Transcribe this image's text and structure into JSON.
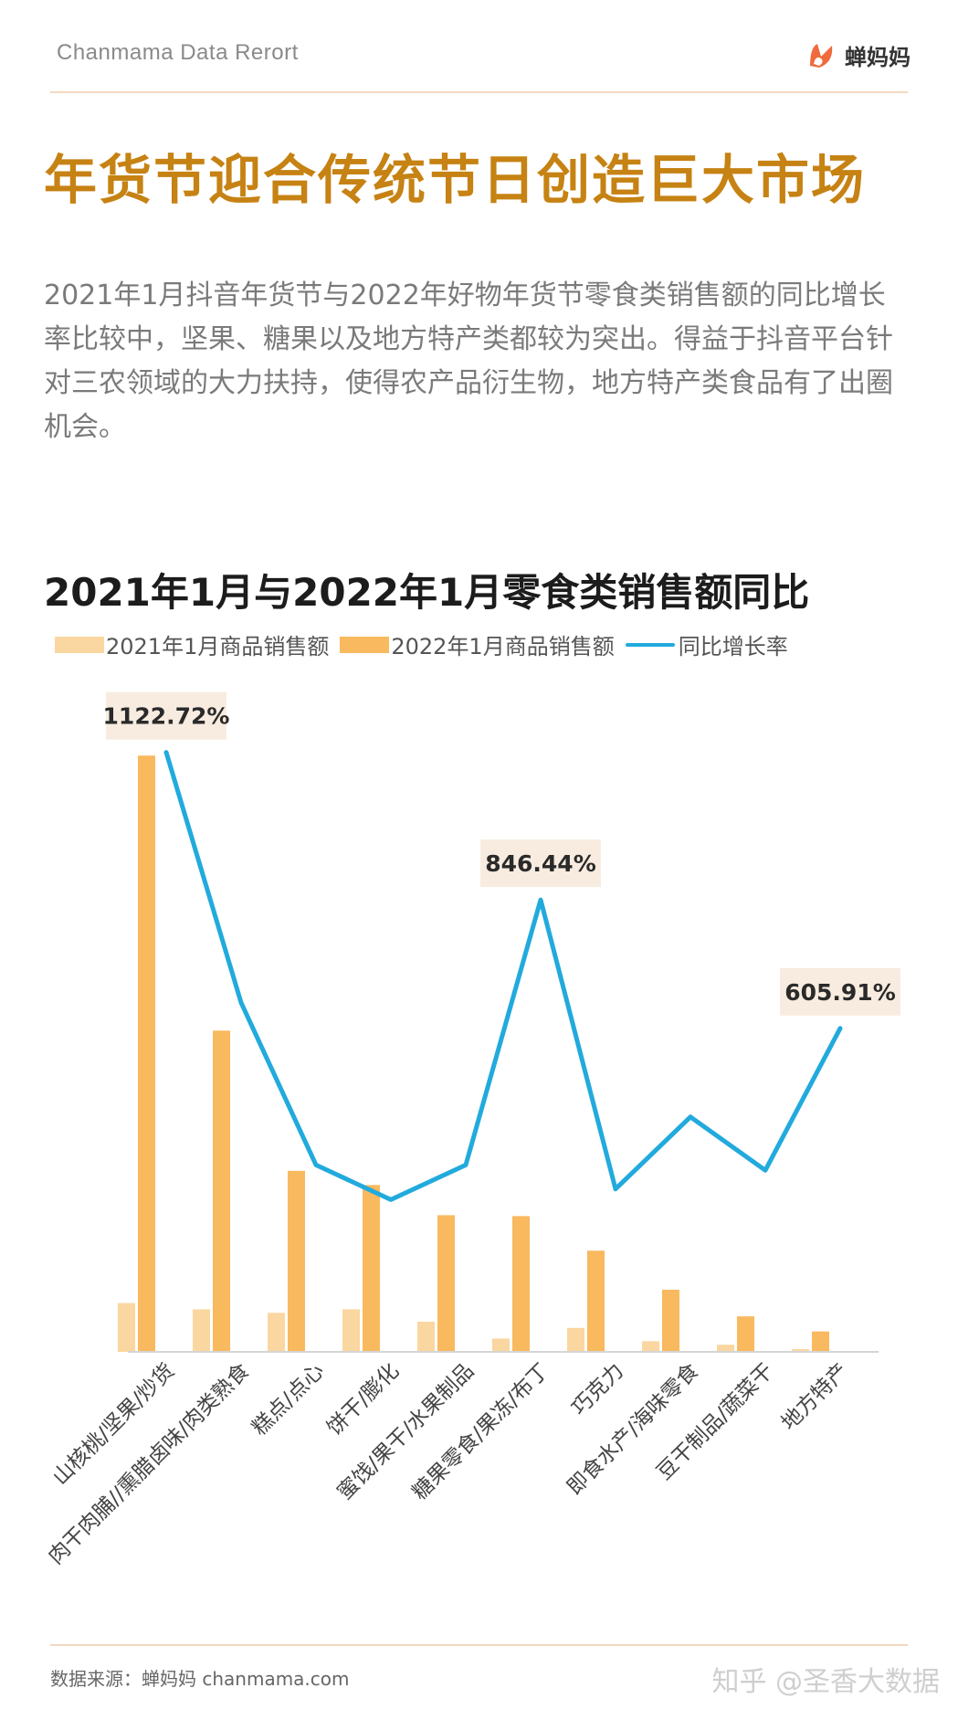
{
  "header": {
    "brand": "Chanmama Data Rerort",
    "logo_text": "蝉妈妈"
  },
  "title": "年货节迎合传统节日创造巨大市场",
  "intro": "2021年1月抖音年货节与2022年好物年货节零食类销售额的同比增长率比较中，坚果、糖果以及地方特产类都较为突出。得益于抖音平台针对三农领域的大力扶持，使得农产品衍生物，地方特产类食品有了出圈机会。",
  "chart_data": {
    "type": "bar",
    "title": "2021年1月与2022年1月零食类销售额同比",
    "categories": [
      "山核桃/坚果/炒货",
      "肉干肉脯//熏腊卤味/肉类熟食",
      "糕点/点心",
      "饼干/膨化",
      "蜜饯/果干/水果制品",
      "糖果零食/果冻/布丁",
      "巧克力",
      "即食水产/海味零食",
      "豆干制品/蔬菜干",
      "地方特产"
    ],
    "series": [
      {
        "name": "2021年1月商品销售额",
        "kind": "bar",
        "color": "#fad7a0",
        "values": [
          55,
          48,
          44,
          48,
          34,
          15,
          27,
          12,
          8,
          3
        ]
      },
      {
        "name": "2022年1月商品销售额",
        "kind": "bar",
        "color": "#f9b95e",
        "values": [
          672,
          362,
          204,
          188,
          154,
          153,
          114,
          70,
          40,
          23
        ]
      },
      {
        "name": "同比增长率",
        "kind": "line",
        "color": "#22aadd",
        "values": [
          1122.72,
          654,
          350,
          285,
          350,
          846.44,
          305,
          440,
          340,
          605.91
        ]
      }
    ],
    "bar_ylim": [
      0,
      700
    ],
    "line_ylim": [
      0,
      1300
    ],
    "annotations": [
      {
        "index": 0,
        "label": "1122.72%"
      },
      {
        "index": 5,
        "label": "846.44%"
      },
      {
        "index": 9,
        "label": "605.91%"
      }
    ],
    "legend_position": "top-left",
    "grid": false
  },
  "footer": {
    "source": "数据来源：蝉妈妈 chanmama.com",
    "watermark": "知乎 @圣香大数据"
  }
}
